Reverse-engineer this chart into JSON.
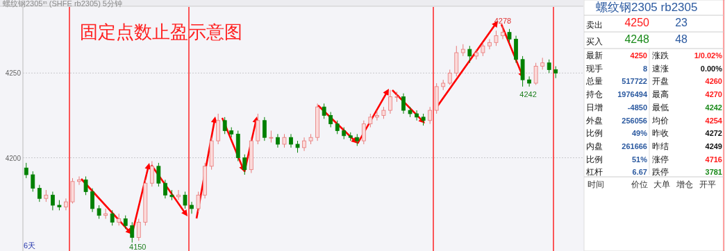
{
  "chart_data": [
    {
      "type": "candlestick",
      "title": "固定点数止盈示意图",
      "categories": [
        null,
        null,
        null,
        null,
        null,
        null,
        null,
        null,
        null,
        null,
        null,
        null,
        null,
        null,
        null,
        null,
        null,
        null,
        null,
        null,
        null,
        null,
        null,
        null,
        null,
        null,
        null,
        null,
        null,
        null,
        null,
        null,
        null,
        null,
        null,
        null,
        null,
        null,
        null,
        null,
        null,
        null,
        null,
        null,
        null,
        null,
        null,
        null,
        null,
        null,
        null,
        null,
        null,
        null,
        null,
        null,
        null,
        null,
        null,
        null,
        null,
        null,
        null,
        null,
        null,
        null,
        null,
        null,
        null,
        null,
        null,
        null,
        null,
        null,
        null,
        null,
        null,
        null,
        null,
        null,
        null
      ],
      "ohlc": [
        [
          4194,
          4197,
          4188,
          4190
        ],
        [
          4190,
          4192,
          4180,
          4182
        ],
        [
          4182,
          4184,
          4174,
          4176
        ],
        [
          4176,
          4181,
          4174,
          4178
        ],
        [
          4178,
          4180,
          4169,
          4172
        ],
        [
          4172,
          4175,
          4169,
          4171
        ],
        [
          4171,
          4176,
          4169,
          4174
        ],
        [
          4174,
          4188,
          4173,
          4186
        ],
        [
          4186,
          4189,
          4184,
          4187
        ],
        [
          4187,
          4189,
          4178,
          4180
        ],
        [
          4180,
          4182,
          4168,
          4170
        ],
        [
          4170,
          4172,
          4164,
          4166
        ],
        [
          4166,
          4170,
          4164,
          4167
        ],
        [
          4167,
          4169,
          4160,
          4162
        ],
        [
          4162,
          4167,
          4160,
          4164
        ],
        [
          4164,
          4166,
          4158,
          4160
        ],
        [
          4160,
          4162,
          4150,
          4153
        ],
        [
          4153,
          4164,
          4151,
          4162
        ],
        [
          4162,
          4187,
          4160,
          4185
        ],
        [
          4185,
          4198,
          4183,
          4195
        ],
        [
          4195,
          4197,
          4183,
          4185
        ],
        [
          4185,
          4187,
          4176,
          4178
        ],
        [
          4178,
          4181,
          4175,
          4177
        ],
        [
          4177,
          4181,
          4175,
          4178
        ],
        [
          4178,
          4180,
          4170,
          4172
        ],
        [
          4172,
          4174,
          4167,
          4170
        ],
        [
          4170,
          4180,
          4168,
          4178
        ],
        [
          4178,
          4197,
          4176,
          4195
        ],
        [
          4195,
          4212,
          4193,
          4210
        ],
        [
          4210,
          4226,
          4208,
          4222
        ],
        [
          4222,
          4224,
          4214,
          4216
        ],
        [
          4216,
          4218,
          4212,
          4214
        ],
        [
          4214,
          4216,
          4198,
          4200
        ],
        [
          4200,
          4202,
          4190,
          4193
        ],
        [
          4193,
          4212,
          4191,
          4210
        ],
        [
          4210,
          4226,
          4208,
          4222
        ],
        [
          4222,
          4224,
          4210,
          4212
        ],
        [
          4212,
          4216,
          4209,
          4212
        ],
        [
          4212,
          4214,
          4206,
          4208
        ],
        [
          4208,
          4214,
          4206,
          4212
        ],
        [
          4212,
          4214,
          4206,
          4208
        ],
        [
          4208,
          4210,
          4203,
          4206
        ],
        [
          4206,
          4212,
          4204,
          4210
        ],
        [
          4210,
          4214,
          4208,
          4212
        ],
        [
          4212,
          4232,
          4210,
          4230
        ],
        [
          4230,
          4232,
          4223,
          4225
        ],
        [
          4225,
          4227,
          4218,
          4220
        ],
        [
          4220,
          4222,
          4214,
          4216
        ],
        [
          4216,
          4218,
          4211,
          4213
        ],
        [
          4213,
          4215,
          4210,
          4212
        ],
        [
          4212,
          4214,
          4207,
          4210
        ],
        [
          4210,
          4222,
          4208,
          4220
        ],
        [
          4220,
          4226,
          4218,
          4224
        ],
        [
          4224,
          4228,
          4222,
          4225
        ],
        [
          4225,
          4230,
          4223,
          4228
        ],
        [
          4228,
          4240,
          4226,
          4236
        ],
        [
          4236,
          4239,
          4233,
          4236
        ],
        [
          4236,
          4238,
          4226,
          4228
        ],
        [
          4228,
          4230,
          4224,
          4226
        ],
        [
          4226,
          4228,
          4222,
          4224
        ],
        [
          4224,
          4226,
          4219,
          4222
        ],
        [
          4222,
          4230,
          4220,
          4228
        ],
        [
          4228,
          4244,
          4226,
          4242
        ],
        [
          4242,
          4246,
          4240,
          4244
        ],
        [
          4244,
          4252,
          4243,
          4250
        ],
        [
          4250,
          4266,
          4248,
          4262
        ],
        [
          4262,
          4267,
          4260,
          4264
        ],
        [
          4264,
          4266,
          4256,
          4260
        ],
        [
          4260,
          4264,
          4258,
          4262
        ],
        [
          4262,
          4268,
          4260,
          4266
        ],
        [
          4266,
          4270,
          4264,
          4268
        ],
        [
          4268,
          4275,
          4266,
          4272
        ],
        [
          4272,
          4278,
          4270,
          4274
        ],
        [
          4274,
          4276,
          4268,
          4270
        ],
        [
          4270,
          4272,
          4256,
          4258
        ],
        [
          4258,
          4260,
          4242,
          4246
        ],
        [
          4246,
          4248,
          4242,
          4244
        ],
        [
          4244,
          4256,
          4243,
          4254
        ],
        [
          4254,
          4259,
          4252,
          4256
        ],
        [
          4256,
          4258,
          4250,
          4252
        ],
        [
          4252,
          4254,
          4247,
          4250
        ]
      ],
      "ylim": [
        4145,
        4289
      ],
      "yticks": [
        4200,
        4250
      ],
      "grid": "y",
      "tick_labels": "y",
      "annotations": [
        "螺纹钢2305ᵐ (SHFE rb2305) 5分钟",
        "6天",
        {
          "text": "4150",
          "y": 4150
        },
        {
          "text": "4278",
          "y": 4278
        },
        {
          "text": "4242",
          "y": 4242
        }
      ]
    },
    {
      "type": "other",
      "annotations": [
        "螺纹钢2305  rb2305",
        "卖出",
        "4250",
        "23",
        "买入",
        "4248",
        "48",
        "最新",
        "4250",
        "涨跌",
        "1/0.02%",
        "现手",
        "8",
        "速涨",
        "0.00%",
        "总量",
        "517722",
        "开盘",
        "4260",
        "持仓",
        "1976494",
        "最高",
        "4270",
        "日增",
        "-4850",
        "最低",
        "4242",
        "外盘",
        "256056",
        "均价",
        "4254",
        "比例",
        "49%",
        "昨收",
        "4272",
        "内盘",
        "261666",
        "昨结",
        "4249",
        "比例",
        "51%",
        "涨停",
        "4716",
        "杠杆",
        "6.67",
        "跌停",
        "3781",
        "时间",
        "价位",
        "大单",
        "增仓",
        "开平"
      ]
    }
  ]
}
